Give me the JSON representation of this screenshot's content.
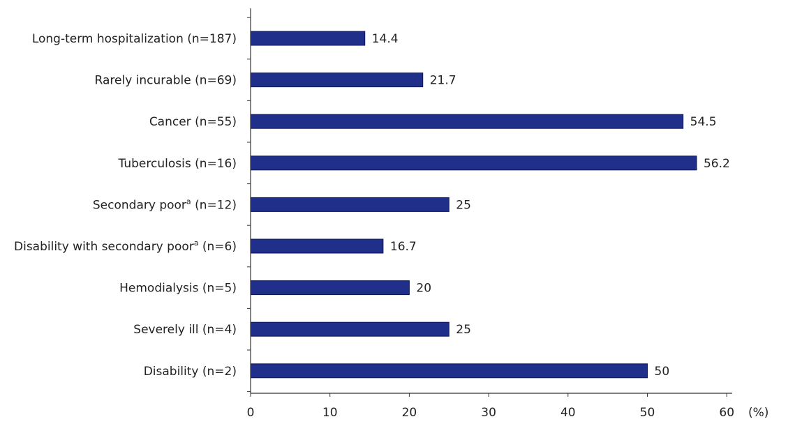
{
  "chart_data": {
    "type": "bar",
    "orientation": "horizontal",
    "categories": [
      {
        "label": "Long-term hospitalization (n=187)",
        "label_main": "Long-term hospitalization",
        "superscript": "",
        "label_tail": " (n=187)"
      },
      {
        "label": "Rarely incurable (n=69)",
        "label_main": "Rarely incurable",
        "superscript": "",
        "label_tail": " (n=69)"
      },
      {
        "label": "Cancer (n=55)",
        "label_main": "Cancer",
        "superscript": "",
        "label_tail": " (n=55)"
      },
      {
        "label": "Tuberculosis (n=16)",
        "label_main": "Tuberculosis",
        "superscript": "",
        "label_tail": " (n=16)"
      },
      {
        "label": "Secondary poora (n=12)",
        "label_main": "Secondary poor",
        "superscript": "a",
        "label_tail": " (n=12)"
      },
      {
        "label": "Disability with secondary poora (n=6)",
        "label_main": "Disability with secondary poor",
        "superscript": "a",
        "label_tail": " (n=6)"
      },
      {
        "label": "Hemodialysis (n=5)",
        "label_main": "Hemodialysis",
        "superscript": "",
        "label_tail": " (n=5)"
      },
      {
        "label": "Severely ill (n=4)",
        "label_main": "Severely ill",
        "superscript": "",
        "label_tail": " (n=4)"
      },
      {
        "label": "Disability (n=2)",
        "label_main": "Disability",
        "superscript": "",
        "label_tail": " (n=2)"
      }
    ],
    "values": [
      14.4,
      21.7,
      54.5,
      56.2,
      25,
      16.7,
      20,
      25,
      50
    ],
    "value_labels": [
      "14.4",
      "21.7",
      "54.5",
      "56.2",
      "25",
      "16.7",
      "20",
      "25",
      "50"
    ],
    "x_ticks": [
      "0",
      "10",
      "20",
      "30",
      "40",
      "50",
      "60"
    ],
    "x_unit": "(%)",
    "xlim": [
      0,
      60
    ],
    "grid": false,
    "legend": "none",
    "bar_color": "#1f2f8a",
    "bar_edge_color": "#0d1656"
  }
}
